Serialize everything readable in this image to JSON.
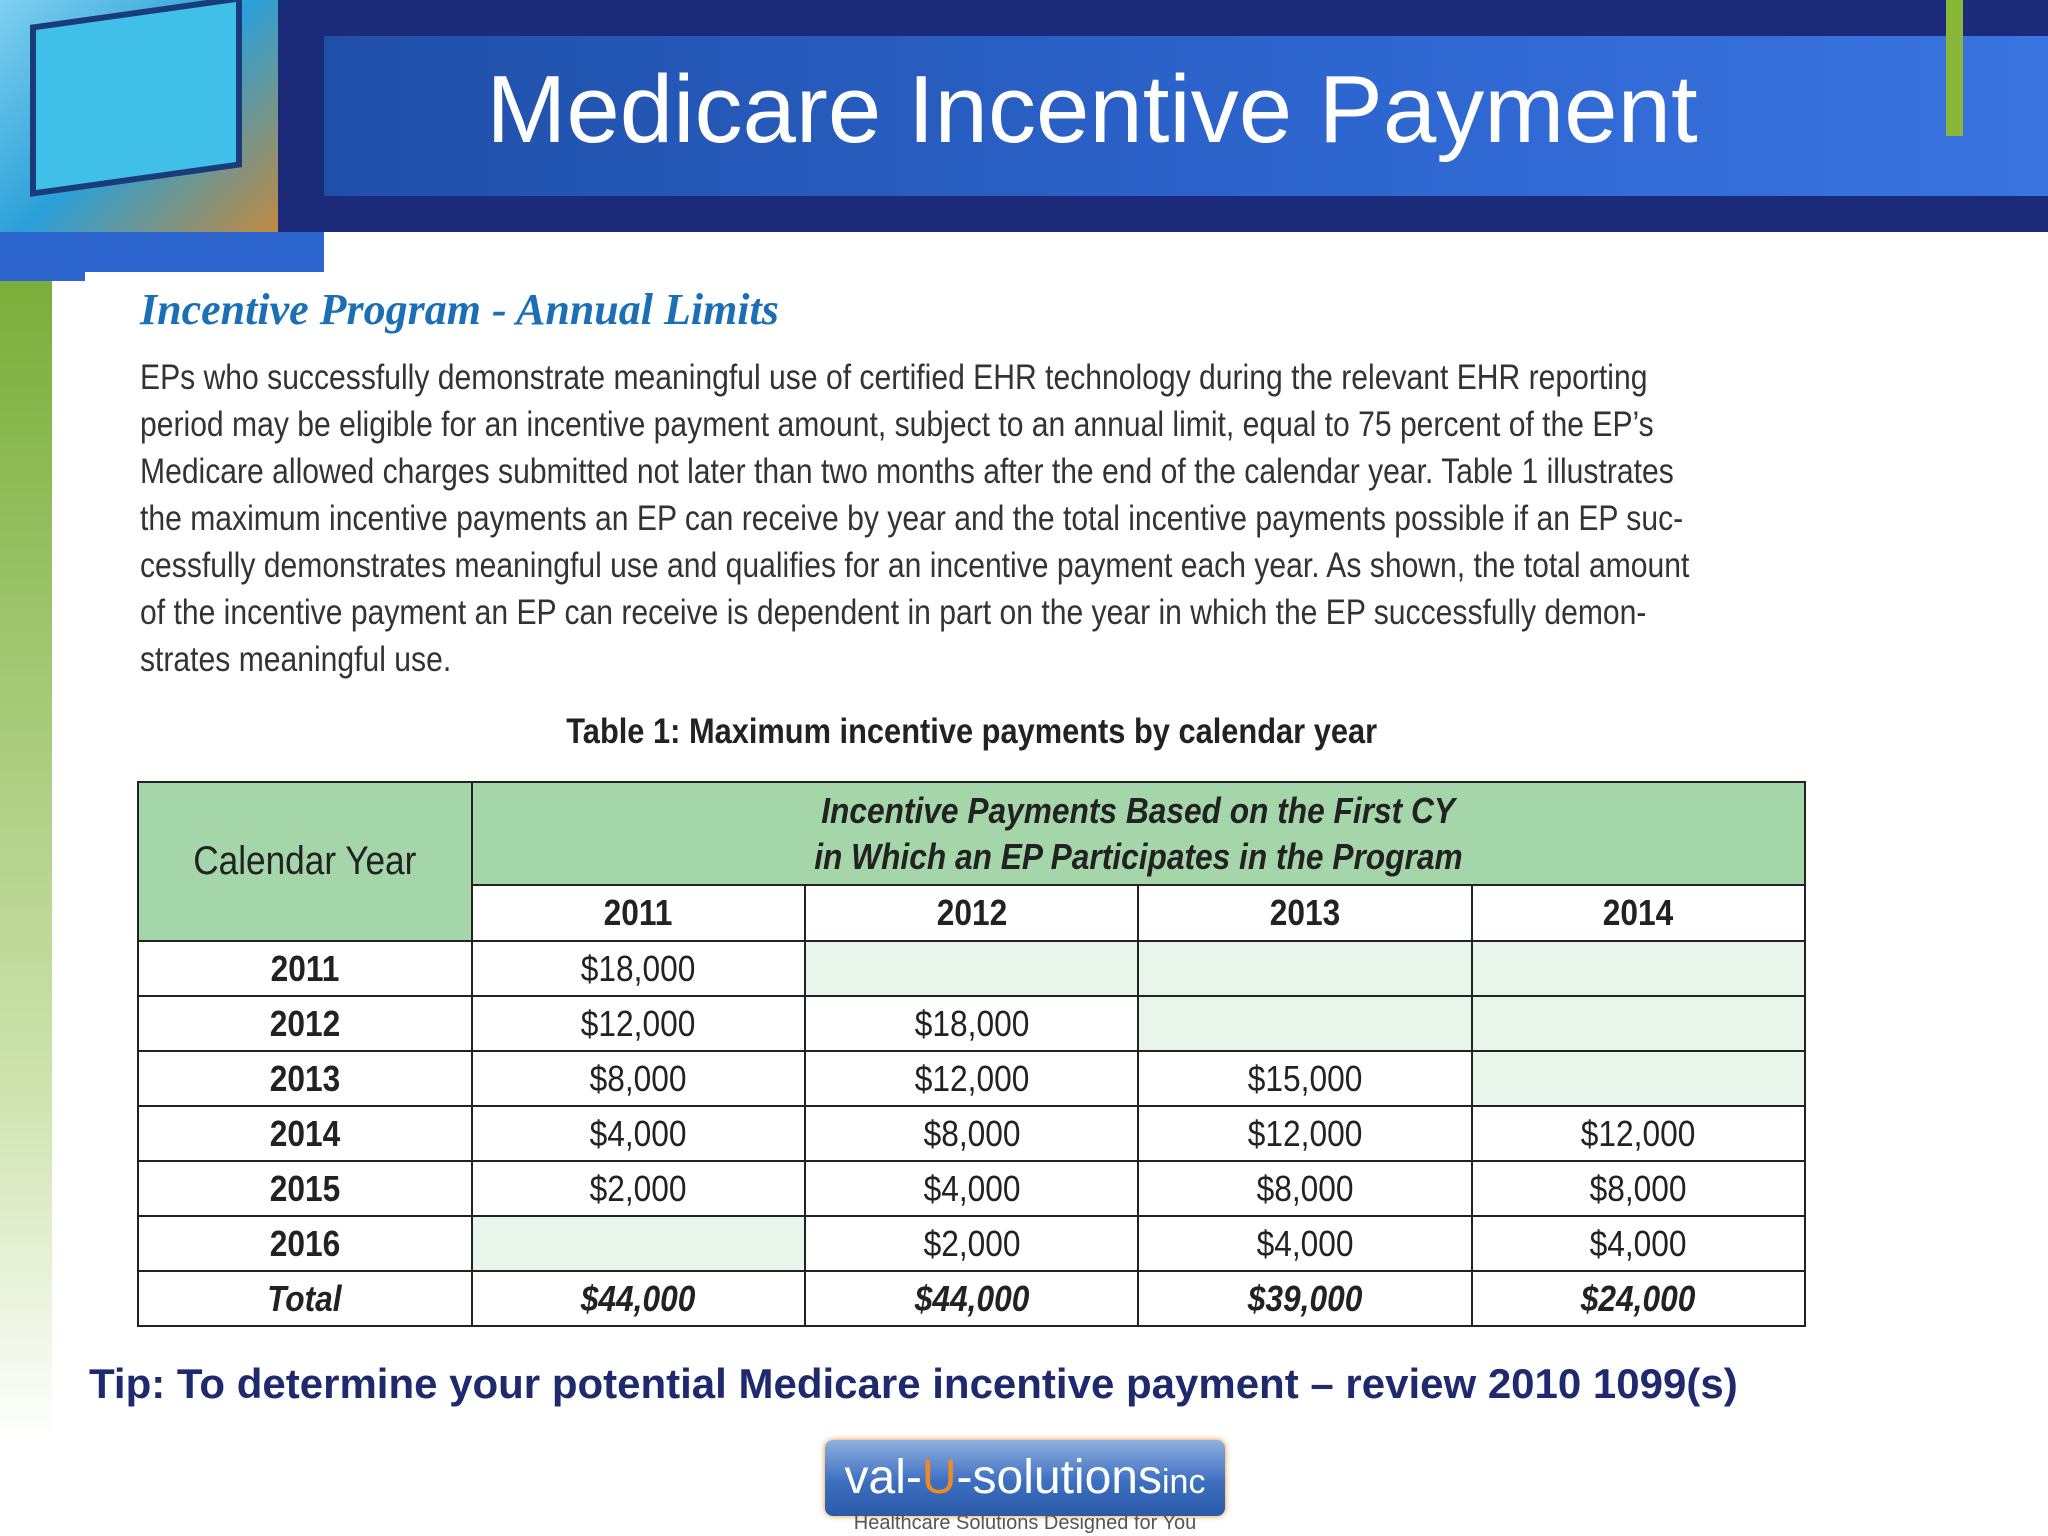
{
  "header": {
    "title": "Medicare Incentive Payment"
  },
  "section": {
    "title": "Incentive Program - Annual Limits",
    "paragraph_lines": [
      "EPs who successfully demonstrate meaningful use of certified EHR technology during the relevant EHR reporting",
      "period may be eligible for an incentive payment amount, subject to an annual limit, equal to 75 percent of the EP’s",
      "Medicare allowed charges submitted not later than two months after the end of the calendar year. Table 1 illustrates",
      "the maximum incentive payments an EP can receive by year and the total incentive payments possible if an EP suc-",
      "cessfully demonstrates meaningful use and qualifies for an incentive payment each year. As shown, the total amount",
      "of the incentive payment an EP can receive is dependent in part on the year in which the EP successfully demon-",
      "strates meaningful use."
    ]
  },
  "table": {
    "caption": "Table 1:  Maximum incentive payments by calendar year",
    "row_header": "Calendar Year",
    "group_header_lines": [
      "Incentive Payments Based on the First CY",
      "in Which an EP Participates in the Program"
    ],
    "columns": [
      "2011",
      "2012",
      "2013",
      "2014"
    ],
    "rows": [
      [
        "2011",
        "$18,000",
        null,
        null,
        null
      ],
      [
        "2012",
        "$12,000",
        "$18,000",
        null,
        null
      ],
      [
        "2013",
        "$8,000",
        "$12,000",
        "$15,000",
        null
      ],
      [
        "2014",
        "$4,000",
        "$8,000",
        "$12,000",
        "$12,000"
      ],
      [
        "2015",
        "$2,000",
        "$4,000",
        "$8,000",
        "$8,000"
      ],
      [
        "2016",
        null,
        "$2,000",
        "$4,000",
        "$4,000"
      ]
    ],
    "total_row": [
      "Total",
      "$44,000",
      "$44,000",
      "$39,000",
      "$24,000"
    ]
  },
  "tip": "Tip: To determine your potential Medicare incentive payment – review 2010 1099(s)",
  "logo": {
    "parts": [
      "val-",
      "U",
      "-solutions",
      "inc"
    ],
    "tagline": "Healthcare Solutions Designed for You"
  }
}
